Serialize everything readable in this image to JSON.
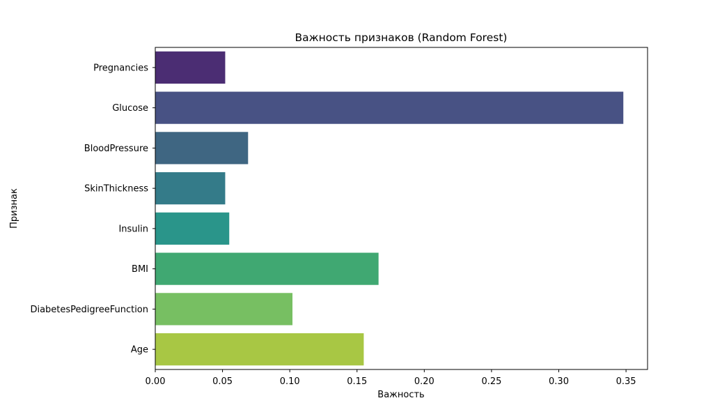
{
  "chart_data": {
    "type": "bar",
    "orientation": "horizontal",
    "title": "Важность признаков (Random Forest)",
    "xlabel": "Важность",
    "ylabel": "Признак",
    "xlim": [
      0,
      0.366
    ],
    "xticks": [
      0.0,
      0.05,
      0.1,
      0.15,
      0.2,
      0.25,
      0.3,
      0.35
    ],
    "xtick_labels": [
      "0.00",
      "0.05",
      "0.10",
      "0.15",
      "0.20",
      "0.25",
      "0.30",
      "0.35"
    ],
    "categories": [
      "Pregnancies",
      "Glucose",
      "BloodPressure",
      "SkinThickness",
      "Insulin",
      "BMI",
      "DiabetesPedigreeFunction",
      "Age"
    ],
    "values": [
      0.052,
      0.348,
      0.069,
      0.052,
      0.055,
      0.166,
      0.102,
      0.155
    ],
    "colors": [
      "#4b2d73",
      "#485284",
      "#3f6682",
      "#347b89",
      "#2a958a",
      "#40a872",
      "#77bf62",
      "#a8c744"
    ],
    "grid": false,
    "legend": "none"
  }
}
